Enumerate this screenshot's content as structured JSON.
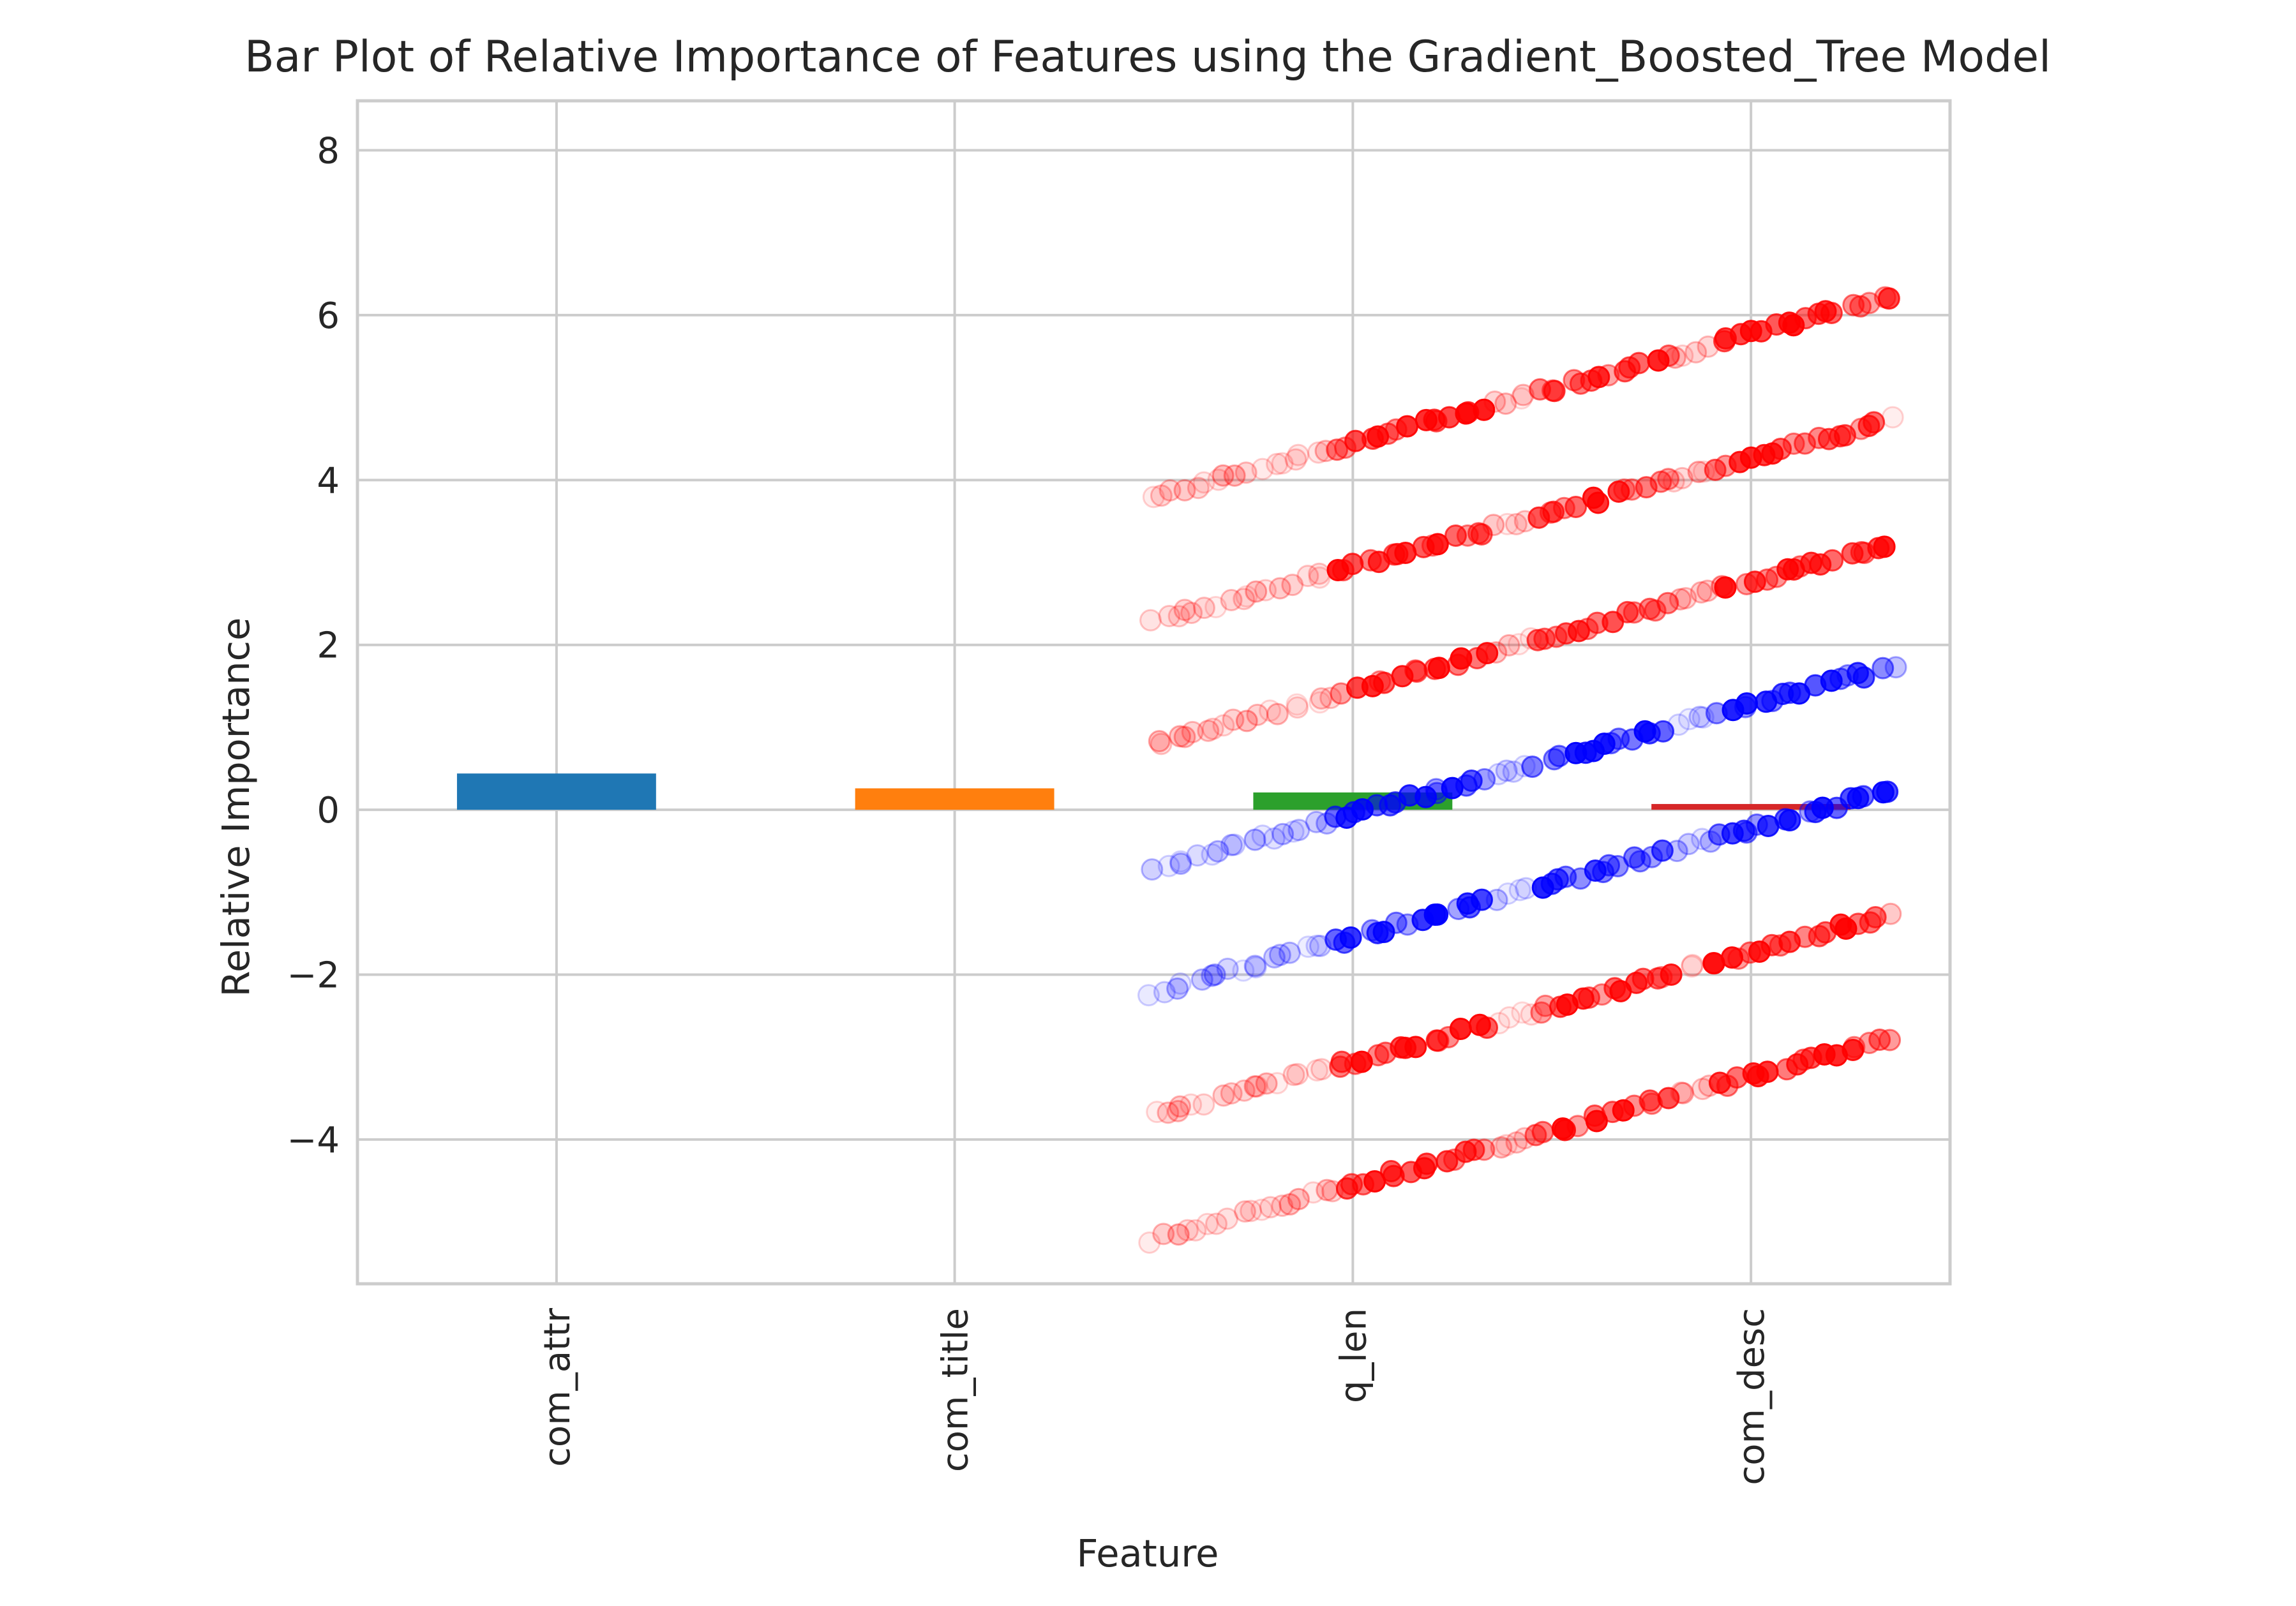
{
  "chart_data": {
    "type": "bar",
    "title": "Bar Plot of Relative Importance of Features using the Gradient_Boosted_Tree Model",
    "xlabel": "Feature",
    "ylabel": "Relative Importance",
    "categories": [
      "com_attr",
      "com_title",
      "q_len",
      "com_desc"
    ],
    "values": [
      0.44,
      0.26,
      0.21,
      0.07
    ],
    "bar_colors": [
      "#1f77b4",
      "#ff7f0e",
      "#2ca02c",
      "#d62728"
    ],
    "ylim": [
      -5.75,
      8.6
    ],
    "yticks": [
      -4,
      -2,
      0,
      2,
      4,
      6,
      8
    ],
    "ytick_labels": [
      "−4",
      "−2",
      "0",
      "2",
      "4",
      "6",
      "8"
    ],
    "grid": true,
    "overlay_scatter": {
      "description": "diagonal bands of translucent markers overlaid on the bar plot",
      "x_range": [
        1.5,
        3.35
      ],
      "slope": 4.0,
      "marker_colors": {
        "positive_band": "#ff0000",
        "negative_band": "#0000ff"
      },
      "bands": [
        {
          "color": "#ff0000",
          "intercept_at_x2": 4.45
        },
        {
          "color": "#ff0000",
          "intercept_at_x2": 2.95
        },
        {
          "color": "#ff0000",
          "intercept_at_x2": 1.45
        },
        {
          "color": "#0000ff",
          "intercept_at_x2": -0.05
        },
        {
          "color": "#0000ff",
          "intercept_at_x2": -1.55
        },
        {
          "color": "#ff0000",
          "intercept_at_x2": -3.05
        },
        {
          "color": "#ff0000",
          "intercept_at_x2": -4.55
        }
      ]
    }
  }
}
